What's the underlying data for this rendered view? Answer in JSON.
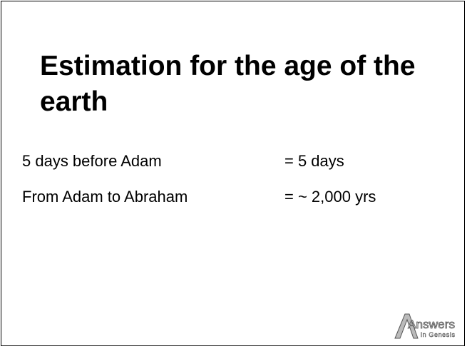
{
  "title": "Estimation for the age of the earth",
  "rows": [
    {
      "label": "5 days before Adam",
      "value": "= 5 days"
    },
    {
      "label": "From Adam to Abraham",
      "value": "= ~ 2,000 yrs"
    }
  ],
  "logo": {
    "name": "Answers",
    "sub": "in Genesis"
  }
}
